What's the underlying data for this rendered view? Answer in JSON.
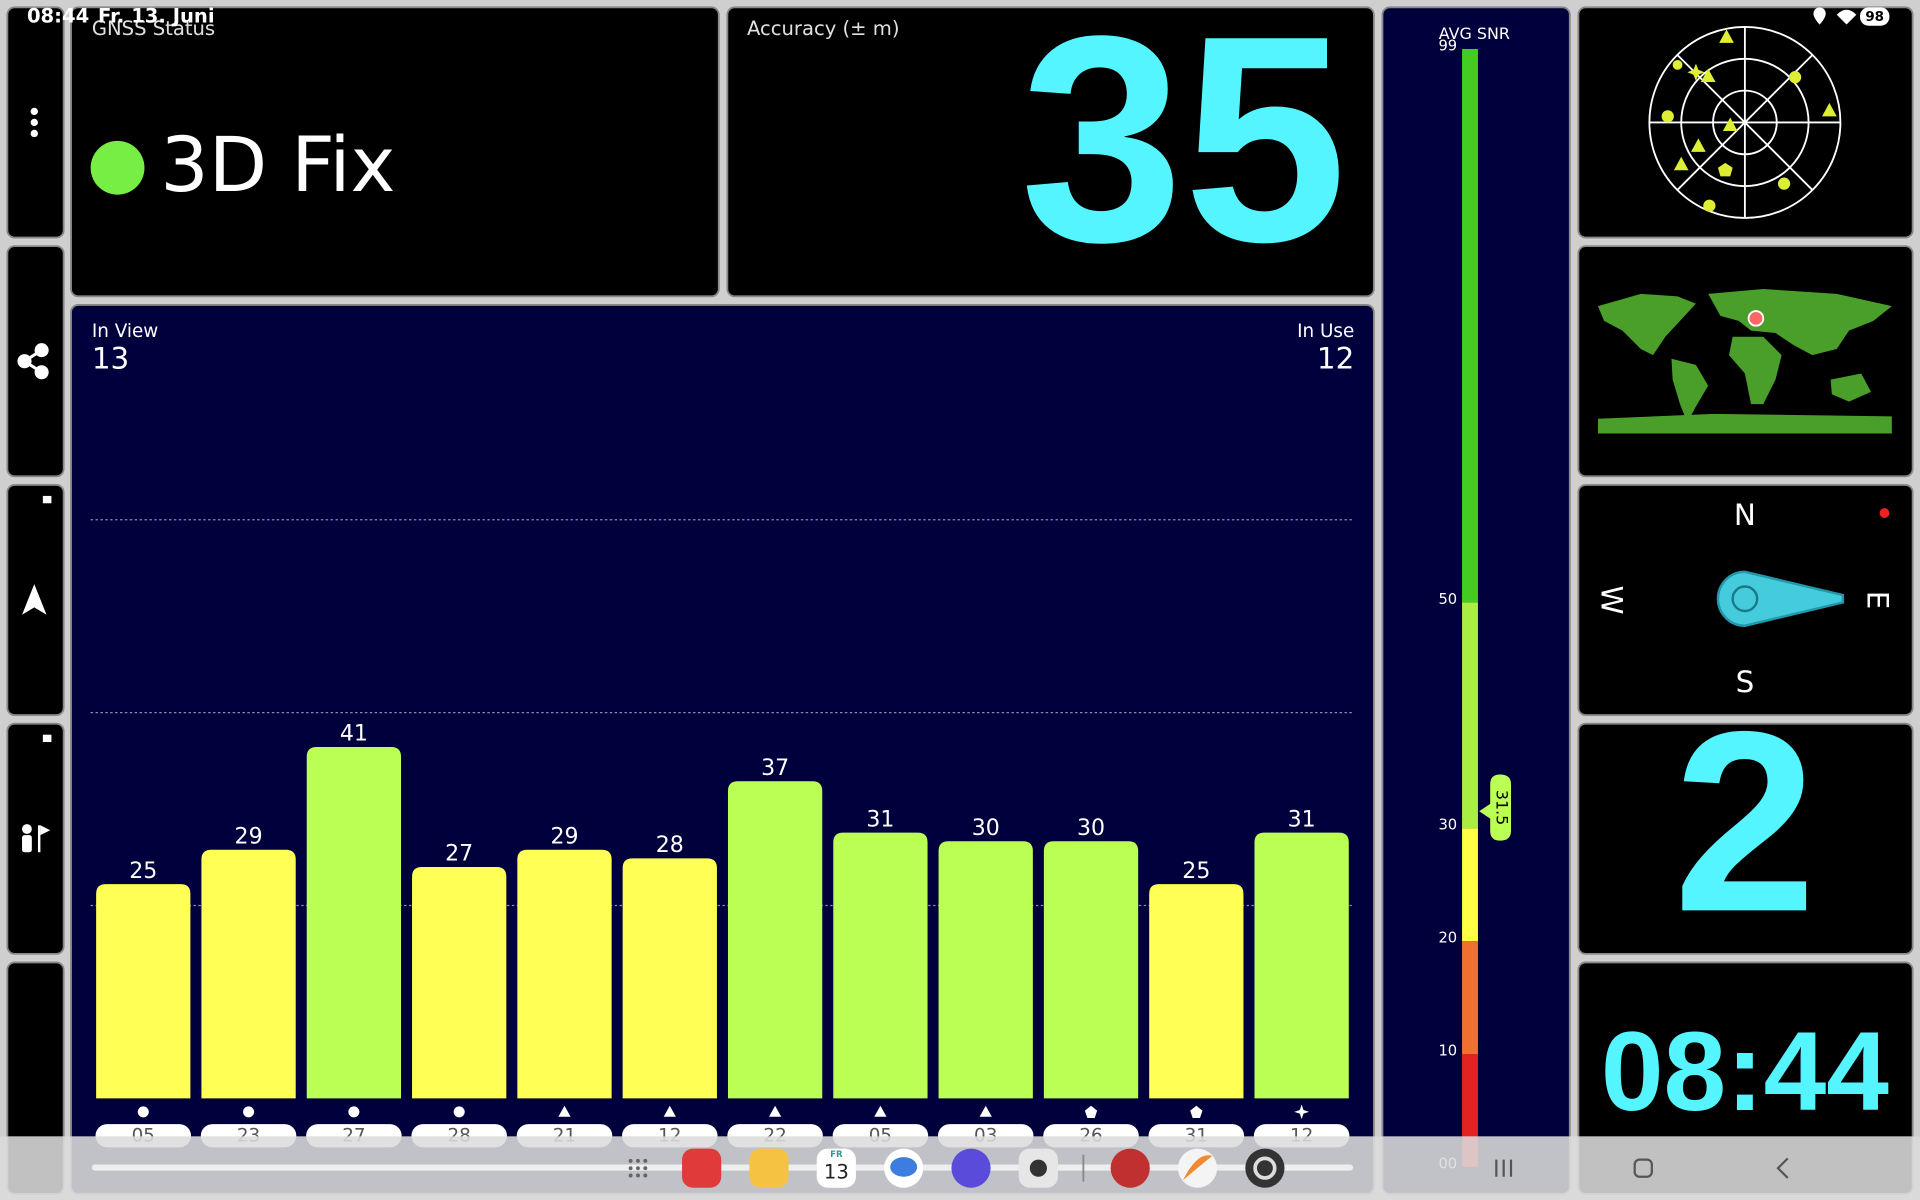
{
  "status_bar": {
    "time": "08:44",
    "date": "Fr. 13. Juni",
    "battery": "98"
  },
  "gnss_status": {
    "title": "GNSS Status",
    "value": "3D Fix",
    "indicator_color": "#77ee44"
  },
  "accuracy": {
    "title": "Accuracy (± m)",
    "value": 35
  },
  "in_view": {
    "label": "In View",
    "value": 13
  },
  "in_use": {
    "label": "In Use",
    "value": 12
  },
  "chart_data": {
    "type": "bar",
    "categories": [
      "05",
      "23",
      "27",
      "28",
      "21",
      "12",
      "22",
      "05",
      "03",
      "26",
      "31",
      "12"
    ],
    "values": [
      25,
      29,
      41,
      27,
      29,
      28,
      37,
      31,
      30,
      30,
      25,
      31
    ],
    "colors": [
      "#ffff55",
      "#ffff55",
      "#bbff55",
      "#ffff55",
      "#ffff55",
      "#ffff55",
      "#bbff55",
      "#bbff55",
      "#bbff55",
      "#bbff55",
      "#ffff55",
      "#bbff55"
    ],
    "markers": [
      "circle",
      "circle",
      "circle",
      "circle",
      "triangle",
      "triangle",
      "triangle",
      "triangle",
      "triangle",
      "pentagon",
      "pentagon",
      "star"
    ],
    "ylim": [
      0,
      90
    ],
    "yticks": [
      22.5,
      45,
      67.5
    ],
    "grid": true
  },
  "snr_meter": {
    "title": "AVG SNR",
    "value": 31.5,
    "ylim": [
      0,
      99
    ],
    "yticks": [
      {
        "value": 0,
        "label": "00"
      },
      10,
      20,
      30,
      50,
      99
    ],
    "bands": [
      {
        "from": 0,
        "to": 10,
        "color": "#e52222"
      },
      {
        "from": 10,
        "to": 20,
        "color": "#f07030"
      },
      {
        "from": 20,
        "to": 30,
        "color": "#ffff44"
      },
      {
        "from": 30,
        "to": 50,
        "color": "#aaee44"
      },
      {
        "from": 50,
        "to": 99,
        "color": "#44cc22"
      }
    ]
  },
  "compass": {
    "north": "N",
    "east": "E",
    "south": "S",
    "west": "W"
  },
  "satellites_panel": {
    "value": 2
  },
  "clock": {
    "value": "08:44"
  },
  "taskbar": {
    "calendar_day": "FR",
    "calendar_date": "13"
  }
}
